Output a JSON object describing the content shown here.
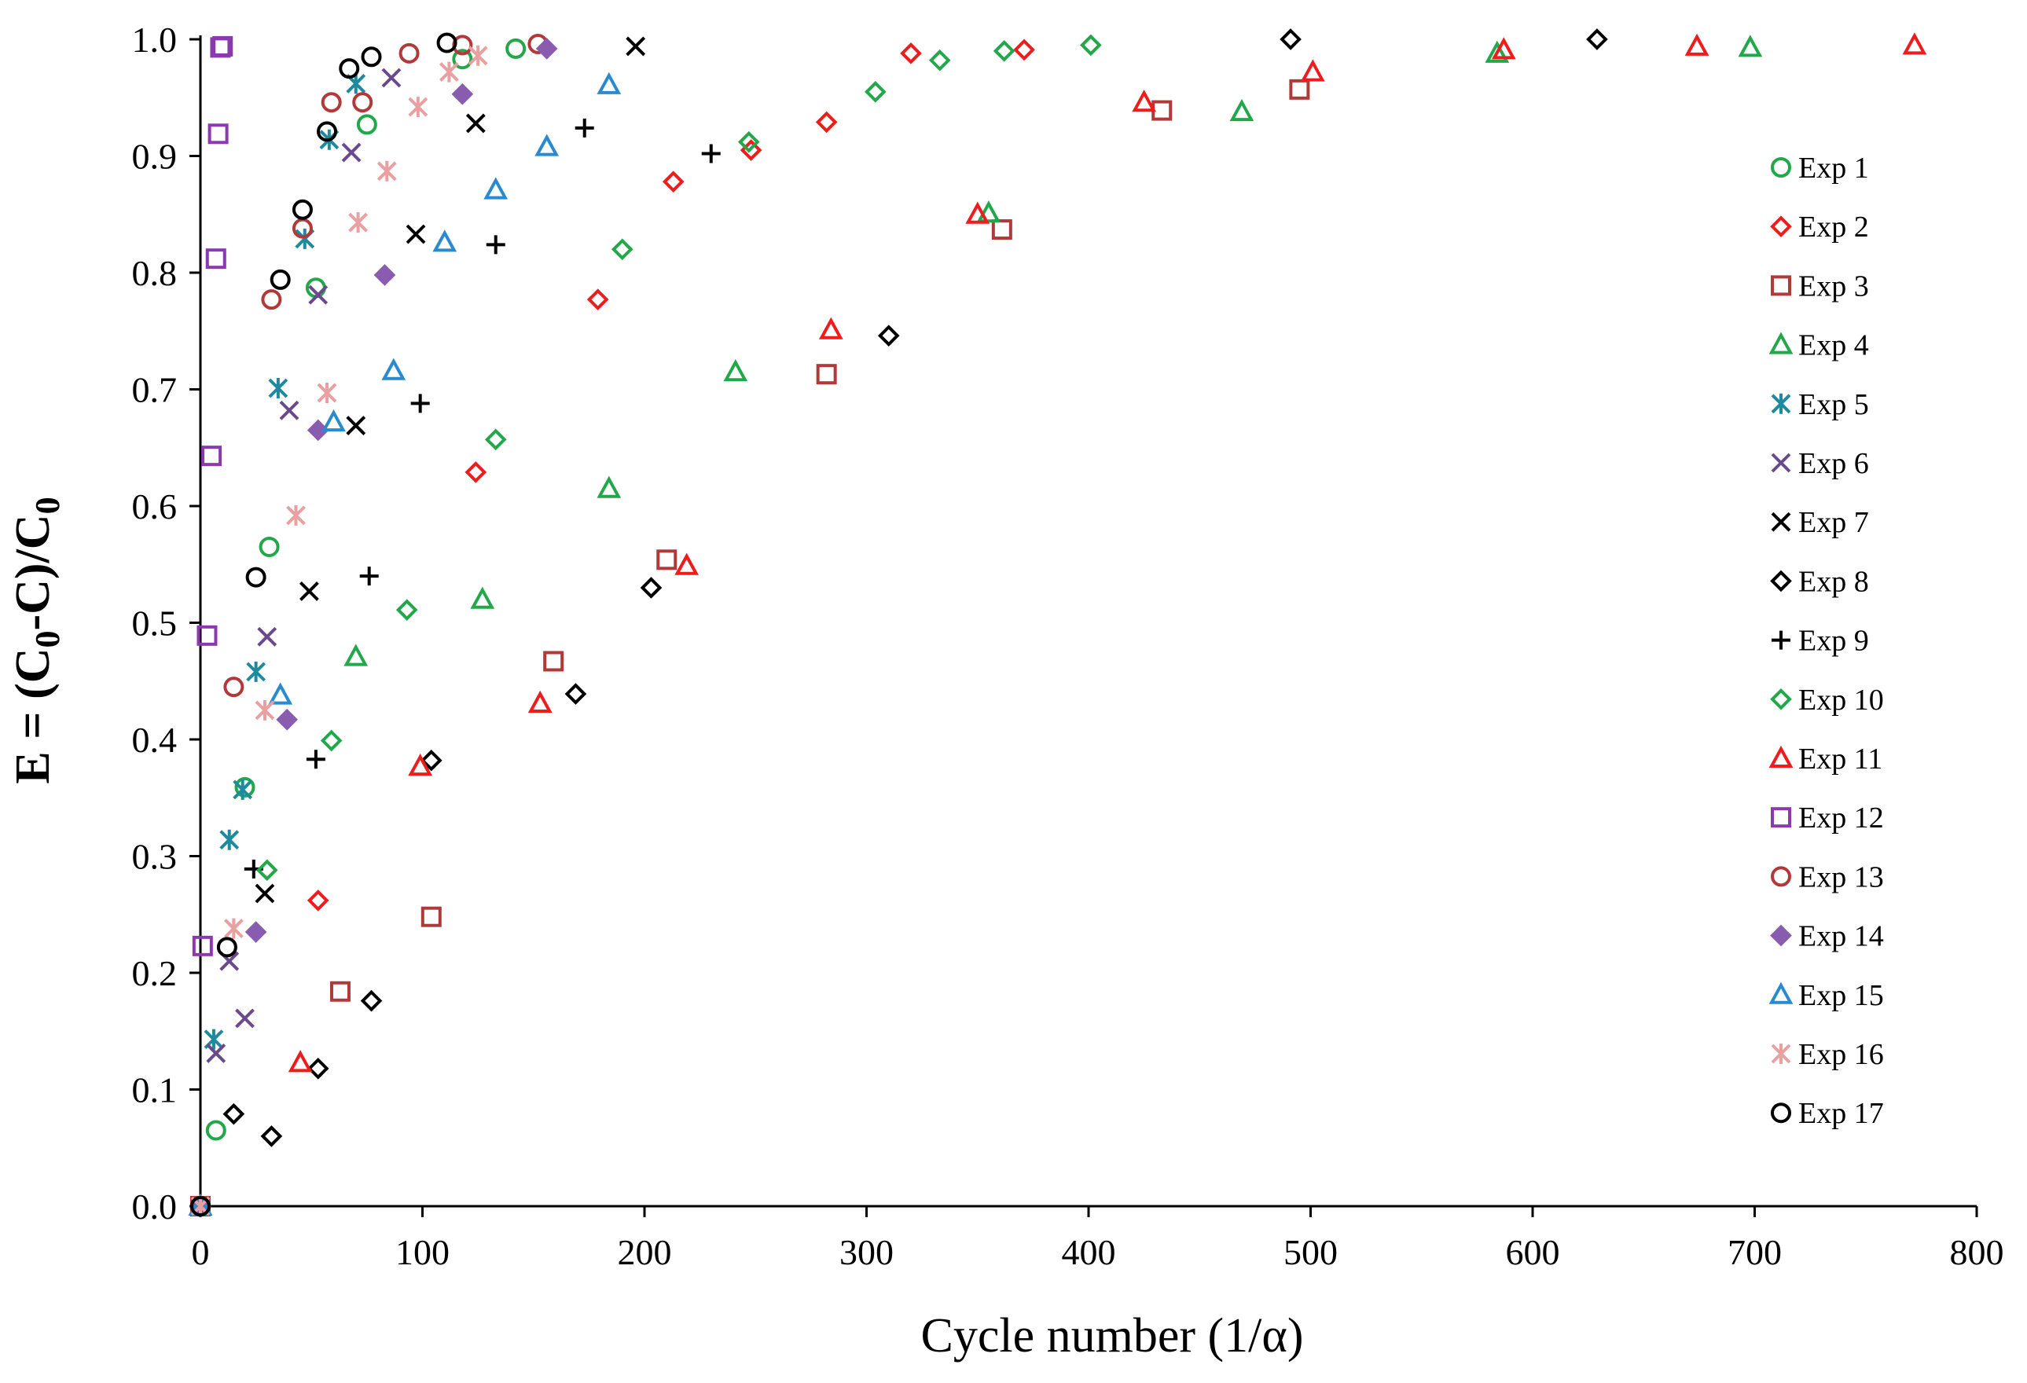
{
  "chart_data": {
    "type": "scatter",
    "title": "",
    "xlabel": "Cycle number (1/α)",
    "ylabel": {
      "main": "E = (C",
      "sub1": "0",
      "mid": "-C)/C",
      "sub2": "0"
    },
    "xlim": [
      0,
      800
    ],
    "ylim": [
      0,
      1.0
    ],
    "xticks": [
      "0",
      "100",
      "200",
      "300",
      "400",
      "500",
      "600",
      "700",
      "800"
    ],
    "yticks": [
      "0.0",
      "0.1",
      "0.2",
      "0.3",
      "0.4",
      "0.5",
      "0.6",
      "0.7",
      "0.8",
      "0.9",
      "1.0"
    ],
    "grid": false,
    "legend_position": "right",
    "series": [
      {
        "name": "Exp 1",
        "marker": "circle",
        "color": "#22a84a",
        "fill": false,
        "points": [
          [
            0,
            0
          ],
          [
            7,
            0.065
          ],
          [
            20,
            0.359
          ],
          [
            31,
            0.565
          ],
          [
            52,
            0.787
          ],
          [
            75,
            0.927
          ],
          [
            118,
            0.983
          ],
          [
            142,
            0.992
          ]
        ]
      },
      {
        "name": "Exp 2",
        "marker": "diamond",
        "color": "#ee1c1c",
        "fill": false,
        "points": [
          [
            0,
            0
          ],
          [
            53,
            0.262
          ],
          [
            124,
            0.629
          ],
          [
            179,
            0.777
          ],
          [
            213,
            0.878
          ],
          [
            248,
            0.905
          ],
          [
            282,
            0.929
          ],
          [
            320,
            0.988
          ],
          [
            371,
            0.991
          ]
        ]
      },
      {
        "name": "Exp 3",
        "marker": "square",
        "color": "#b03a3a",
        "fill": false,
        "points": [
          [
            0,
            0
          ],
          [
            63,
            0.184
          ],
          [
            104,
            0.248
          ],
          [
            159,
            0.467
          ],
          [
            210,
            0.554
          ],
          [
            282,
            0.713
          ],
          [
            361,
            0.837
          ],
          [
            433,
            0.939
          ],
          [
            495,
            0.957
          ]
        ]
      },
      {
        "name": "Exp 4",
        "marker": "triangle",
        "color": "#22a84a",
        "fill": false,
        "points": [
          [
            0,
            0
          ],
          [
            70,
            0.471
          ],
          [
            127,
            0.52
          ],
          [
            184,
            0.615
          ],
          [
            241,
            0.715
          ],
          [
            355,
            0.851
          ],
          [
            469,
            0.938
          ],
          [
            584,
            0.988
          ],
          [
            698,
            0.993
          ]
        ]
      },
      {
        "name": "Exp 5",
        "marker": "asterisk",
        "color": "#1e8a9e",
        "fill": false,
        "points": [
          [
            0,
            0
          ],
          [
            6,
            0.143
          ],
          [
            13,
            0.314
          ],
          [
            19,
            0.357
          ],
          [
            25,
            0.458
          ],
          [
            35,
            0.701
          ],
          [
            47,
            0.829
          ],
          [
            58,
            0.914
          ],
          [
            70,
            0.962
          ]
        ]
      },
      {
        "name": "Exp 6",
        "marker": "x",
        "color": "#6a4a8c",
        "fill": false,
        "points": [
          [
            0,
            0
          ],
          [
            7,
            0.131
          ],
          [
            13,
            0.21
          ],
          [
            20,
            0.161
          ],
          [
            30,
            0.488
          ],
          [
            40,
            0.682
          ],
          [
            53,
            0.781
          ],
          [
            68,
            0.903
          ],
          [
            86,
            0.967
          ]
        ]
      },
      {
        "name": "Exp 7",
        "marker": "x",
        "color": "#000000",
        "fill": false,
        "points": [
          [
            0,
            0
          ],
          [
            29,
            0.268
          ],
          [
            49,
            0.527
          ],
          [
            70,
            0.669
          ],
          [
            97,
            0.833
          ],
          [
            124,
            0.928
          ],
          [
            196,
            0.994
          ]
        ]
      },
      {
        "name": "Exp 8",
        "marker": "diamond",
        "color": "#000000",
        "fill": false,
        "points": [
          [
            0,
            0
          ],
          [
            15,
            0.079
          ],
          [
            32,
            0.06
          ],
          [
            53,
            0.118
          ],
          [
            77,
            0.176
          ],
          [
            104,
            0.382
          ],
          [
            169,
            0.439
          ],
          [
            203,
            0.53
          ],
          [
            310,
            0.746
          ],
          [
            491,
            1.0
          ],
          [
            629,
            1.0
          ]
        ]
      },
      {
        "name": "Exp 9",
        "marker": "plus",
        "color": "#000000",
        "fill": false,
        "points": [
          [
            0,
            0
          ],
          [
            24,
            0.289
          ],
          [
            52,
            0.383
          ],
          [
            76,
            0.54
          ],
          [
            99,
            0.688
          ],
          [
            133,
            0.824
          ],
          [
            230,
            0.902
          ],
          [
            173,
            0.924
          ]
        ]
      },
      {
        "name": "Exp 10",
        "marker": "diamond",
        "color": "#22a84a",
        "fill": false,
        "points": [
          [
            0,
            0
          ],
          [
            30,
            0.288
          ],
          [
            59,
            0.399
          ],
          [
            93,
            0.511
          ],
          [
            133,
            0.657
          ],
          [
            190,
            0.82
          ],
          [
            247,
            0.912
          ],
          [
            304,
            0.955
          ],
          [
            333,
            0.982
          ],
          [
            362,
            0.99
          ],
          [
            401,
            0.995
          ]
        ]
      },
      {
        "name": "Exp 11",
        "marker": "triangle",
        "color": "#ee1c1c",
        "fill": false,
        "points": [
          [
            0,
            0
          ],
          [
            45,
            0.123
          ],
          [
            99,
            0.377
          ],
          [
            153,
            0.431
          ],
          [
            219,
            0.549
          ],
          [
            284,
            0.751
          ],
          [
            350,
            0.85
          ],
          [
            425,
            0.946
          ],
          [
            501,
            0.972
          ],
          [
            587,
            0.991
          ],
          [
            674,
            0.994
          ],
          [
            772,
            0.995
          ]
        ]
      },
      {
        "name": "Exp 12",
        "marker": "square",
        "color": "#8a3aae",
        "fill": false,
        "points": [
          [
            1,
            0.223
          ],
          [
            3,
            0.489
          ],
          [
            5,
            0.643
          ],
          [
            7,
            0.812
          ],
          [
            8,
            0.919
          ],
          [
            9,
            0.993
          ],
          [
            10,
            0.994
          ]
        ]
      },
      {
        "name": "Exp 13",
        "marker": "circle",
        "color": "#b03a3a",
        "fill": false,
        "points": [
          [
            0,
            0
          ],
          [
            15,
            0.445
          ],
          [
            32,
            0.777
          ],
          [
            46,
            0.838
          ],
          [
            59,
            0.946
          ],
          [
            73,
            0.946
          ],
          [
            94,
            0.988
          ],
          [
            118,
            0.995
          ],
          [
            152,
            0.996
          ]
        ]
      },
      {
        "name": "Exp 14",
        "marker": "diamond-filled",
        "color": "#8a5cb0",
        "fill": true,
        "points": [
          [
            0,
            0
          ],
          [
            25,
            0.235
          ],
          [
            39,
            0.417
          ],
          [
            53,
            0.665
          ],
          [
            83,
            0.798
          ],
          [
            118,
            0.953
          ],
          [
            156,
            0.992
          ]
        ]
      },
      {
        "name": "Exp 15",
        "marker": "triangle",
        "color": "#2a8ad0",
        "fill": false,
        "points": [
          [
            0,
            0
          ],
          [
            36,
            0.438
          ],
          [
            60,
            0.672
          ],
          [
            87,
            0.716
          ],
          [
            110,
            0.826
          ],
          [
            133,
            0.871
          ],
          [
            156,
            0.908
          ],
          [
            184,
            0.961
          ]
        ]
      },
      {
        "name": "Exp 16",
        "marker": "asterisk",
        "color": "#e8a0a0",
        "fill": false,
        "points": [
          [
            0,
            0
          ],
          [
            15,
            0.238
          ],
          [
            29,
            0.425
          ],
          [
            43,
            0.592
          ],
          [
            57,
            0.697
          ],
          [
            71,
            0.843
          ],
          [
            84,
            0.887
          ],
          [
            98,
            0.942
          ],
          [
            112,
            0.972
          ],
          [
            125,
            0.986
          ]
        ]
      },
      {
        "name": "Exp 17",
        "marker": "circle",
        "color": "#000000",
        "fill": false,
        "points": [
          [
            0,
            0
          ],
          [
            12,
            0.222
          ],
          [
            25,
            0.539
          ],
          [
            36,
            0.794
          ],
          [
            46,
            0.854
          ],
          [
            57,
            0.921
          ],
          [
            67,
            0.975
          ],
          [
            77,
            0.985
          ],
          [
            111,
            0.997
          ]
        ]
      }
    ]
  }
}
